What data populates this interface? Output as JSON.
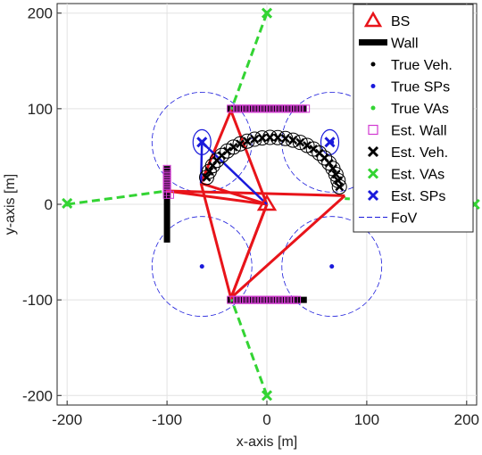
{
  "chart_data": {
    "type": "scatter",
    "xlabel": "x-axis [m]",
    "ylabel": "y-axis [m]",
    "xlim": [
      -210,
      210
    ],
    "ylim": [
      -210,
      210
    ],
    "xticks": [
      -200,
      -100,
      0,
      100,
      200
    ],
    "yticks": [
      -200,
      -100,
      0,
      100,
      200
    ],
    "grid": true,
    "legend_position": "top-right",
    "legend": [
      "BS",
      "Wall",
      "True Veh.",
      "True SPs",
      "True VAs",
      "Est. Wall",
      "Est. Veh.",
      "Est. VAs",
      "Est. SPs",
      "FoV"
    ],
    "bs": {
      "x": 0,
      "y": 0
    },
    "walls": [
      {
        "x": [
          -100,
          -100
        ],
        "y": [
          -40,
          40
        ]
      },
      {
        "x": [
          -40,
          40
        ],
        "y": [
          100,
          100
        ]
      },
      {
        "x": [
          -40,
          40
        ],
        "y": [
          -100,
          -100
        ]
      }
    ],
    "true_sps": [
      {
        "x": -65,
        "y": 65
      },
      {
        "x": 65,
        "y": 65
      },
      {
        "x": -65,
        "y": -65
      },
      {
        "x": 65,
        "y": -65
      }
    ],
    "true_vas": [
      {
        "x": -200,
        "y": 0
      },
      {
        "x": 0,
        "y": 200
      },
      {
        "x": 0,
        "y": -200
      },
      {
        "x": 200,
        "y": 0
      }
    ],
    "est_vas": [
      {
        "x": -200,
        "y": 1
      },
      {
        "x": 0,
        "y": 200
      },
      {
        "x": 0,
        "y": -200
      },
      {
        "x": 208,
        "y": 0
      }
    ],
    "est_sps": [
      {
        "x": -65,
        "y": 65
      },
      {
        "x": 63,
        "y": 65
      }
    ],
    "fov_circles": [
      {
        "x": -65,
        "y": 65,
        "r": 50
      },
      {
        "x": 65,
        "y": 65,
        "r": 50
      },
      {
        "x": -65,
        "y": -65,
        "r": 50
      },
      {
        "x": 65,
        "y": -65,
        "r": 50
      }
    ]
  }
}
